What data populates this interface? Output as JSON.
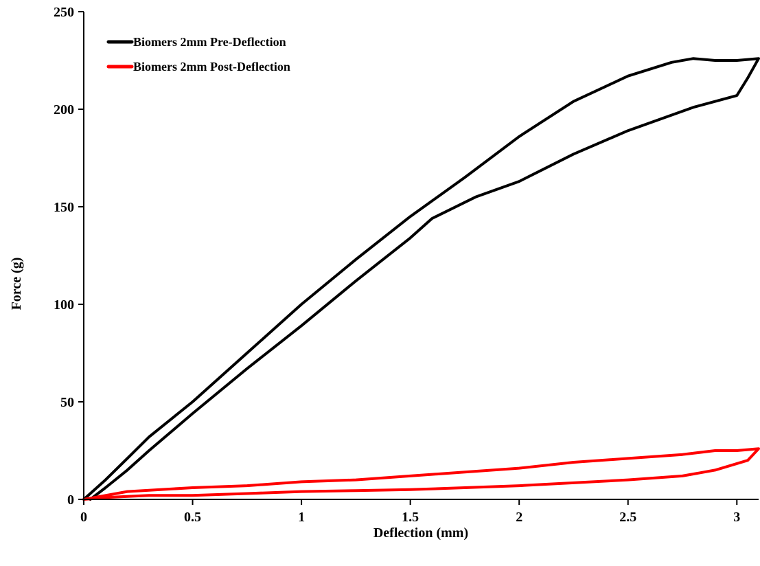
{
  "chart_data": {
    "type": "line",
    "xlabel": "Deflection (mm)",
    "ylabel": "Force (g)",
    "xlim": [
      0,
      3.1
    ],
    "ylim": [
      0,
      250
    ],
    "xticks": [
      0,
      0.5,
      1,
      1.5,
      2,
      2.5,
      3
    ],
    "xtick_labels": [
      "0",
      "0.5",
      "1",
      "1.5",
      "2",
      "2.5",
      "3"
    ],
    "yticks": [
      0,
      50,
      100,
      150,
      200,
      250
    ],
    "ytick_labels": [
      "0",
      "50",
      "100",
      "150",
      "200",
      "250"
    ],
    "grid": false,
    "legend_position": "top-left",
    "series": [
      {
        "name": "Biomers 2mm Pre-Deflection",
        "color": "#000000",
        "x": [
          0.0,
          0.1,
          0.2,
          0.3,
          0.5,
          0.75,
          1.0,
          1.25,
          1.5,
          1.75,
          2.0,
          2.25,
          2.5,
          2.7,
          2.8,
          2.9,
          3.0,
          3.1,
          3.05,
          3.0,
          2.8,
          2.5,
          2.25,
          2.0,
          1.8,
          1.6,
          1.5,
          1.25,
          1.0,
          0.75,
          0.5,
          0.3,
          0.2,
          0.1,
          0.03
        ],
        "y": [
          0,
          10,
          21,
          32,
          50,
          75,
          100,
          123,
          145,
          165,
          186,
          204,
          217,
          224,
          226,
          225,
          225,
          226,
          216,
          207,
          201,
          189,
          177,
          163,
          155,
          144,
          134,
          112,
          89,
          67,
          44,
          25,
          15,
          6,
          0
        ]
      },
      {
        "name": "Biomers 2mm Post-Deflection",
        "color": "#ff0000",
        "x": [
          0.0,
          0.2,
          0.5,
          0.75,
          1.0,
          1.25,
          1.5,
          1.75,
          2.0,
          2.25,
          2.5,
          2.75,
          2.9,
          3.0,
          3.1,
          3.05,
          2.9,
          2.75,
          2.5,
          2.25,
          2.0,
          1.75,
          1.5,
          1.25,
          1.0,
          0.75,
          0.5,
          0.3,
          0.2,
          0.1,
          0.0
        ],
        "y": [
          0,
          4,
          6,
          7,
          9,
          10,
          12,
          14,
          16,
          19,
          21,
          23,
          25,
          25,
          26,
          20,
          15,
          12,
          10,
          8.5,
          7,
          6,
          5,
          4.5,
          4,
          3,
          2,
          2,
          1.5,
          1,
          0
        ]
      }
    ]
  }
}
